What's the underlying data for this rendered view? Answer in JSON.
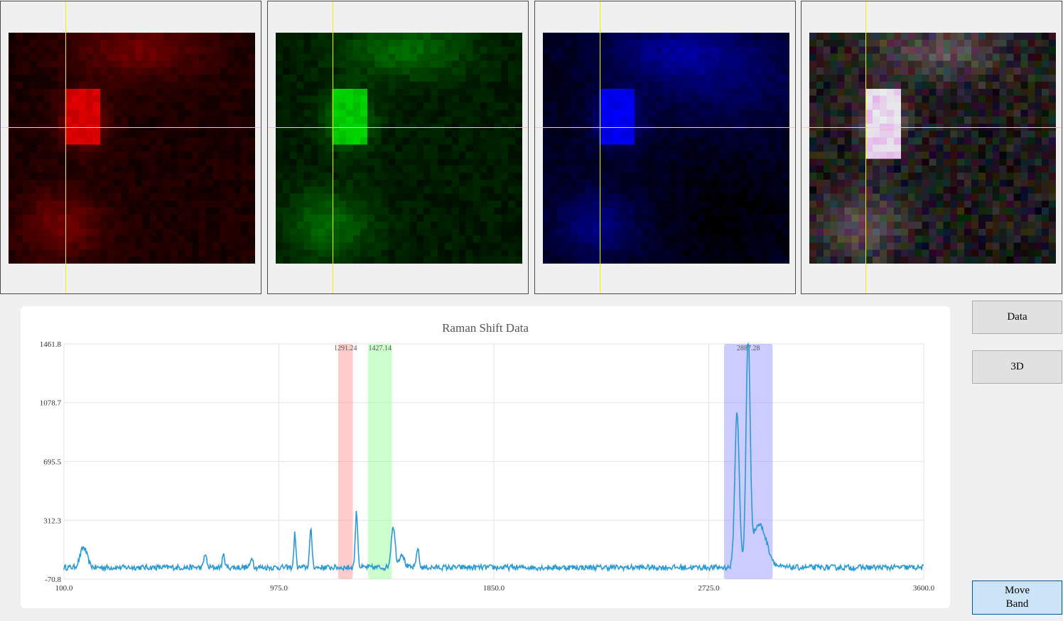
{
  "panels": [
    {
      "name": "red-channel",
      "color": "#ff0000"
    },
    {
      "name": "green-channel",
      "color": "#00ff00"
    },
    {
      "name": "blue-channel",
      "color": "#0000ff"
    },
    {
      "name": "composite",
      "color": "#ffffff"
    }
  ],
  "buttons": {
    "data": "Data",
    "threed": "3D",
    "move_band": "Move\nBand"
  },
  "chart_data": {
    "type": "line",
    "title": "Raman Shift Data",
    "xlabel": "",
    "ylabel": "",
    "xlim": [
      100.0,
      3600.0
    ],
    "ylim": [
      -70.8,
      1461.8
    ],
    "x_ticks": [
      "100.0",
      "975.0",
      "1850.0",
      "2725.0",
      "3600.0"
    ],
    "y_ticks": [
      "-70.8",
      "312.3",
      "695.5",
      "1078.7",
      "1461.8"
    ],
    "grid": true,
    "series_color": "#2a9ad6",
    "baseline": 5,
    "noise": 18,
    "peaks": [
      {
        "x": 180,
        "y": 130,
        "w": 14
      },
      {
        "x": 675,
        "y": 90,
        "w": 5
      },
      {
        "x": 750,
        "y": 80,
        "w": 5
      },
      {
        "x": 865,
        "y": 70,
        "w": 5
      },
      {
        "x": 1040,
        "y": 225,
        "w": 4
      },
      {
        "x": 1105,
        "y": 240,
        "w": 5
      },
      {
        "x": 1291,
        "y": 360,
        "w": 5
      },
      {
        "x": 1440,
        "y": 270,
        "w": 8
      },
      {
        "x": 1475,
        "y": 90,
        "w": 10
      },
      {
        "x": 1540,
        "y": 130,
        "w": 5
      },
      {
        "x": 2840,
        "y": 1010,
        "w": 9
      },
      {
        "x": 2885,
        "y": 1440,
        "w": 8
      },
      {
        "x": 2930,
        "y": 280,
        "w": 30
      }
    ],
    "bands": [
      {
        "center": "1291.24",
        "x0": 1216,
        "x1": 1276,
        "color": "#ff9999"
      },
      {
        "center": "1427.14",
        "x0": 1338,
        "x1": 1435,
        "color": "#99ff99"
      },
      {
        "center": "2887.28",
        "x0": 2787,
        "x1": 2985,
        "color": "#9999ff"
      }
    ]
  }
}
